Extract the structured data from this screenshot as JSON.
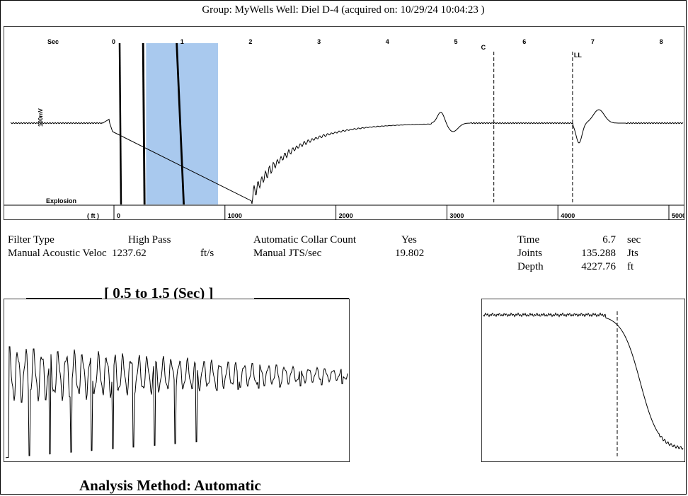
{
  "header": {
    "title": "Group: MyWells     Well: Diel D-4 (acquired on: 10/29/24 10:04:23 )"
  },
  "main_trace": {
    "sec_label": "Sec",
    "sec_ticks": [
      "0",
      "1",
      "2",
      "3",
      "4",
      "5",
      "6",
      "7",
      "8"
    ],
    "ft_label": "( ft )",
    "ft_ticks": [
      "0",
      "1000",
      "2000",
      "3000",
      "4000",
      "5000"
    ],
    "amplitude_label": "100mV",
    "explosion_label": "Explosion",
    "marker_c": "C",
    "marker_ll": "LL",
    "selection_sec": [
      0.5,
      1.5
    ],
    "marker_c_sec": 5.55,
    "marker_ll_sec": 6.7,
    "highlight_color": "#a9c9ee"
  },
  "params": {
    "filter_type_label": "Filter Type",
    "filter_type_value": "High Pass",
    "manual_velocity_label": "Manual Acoustic Veloc",
    "manual_velocity_value": "1237.62",
    "manual_velocity_unit": "ft/s",
    "auto_collar_label": "Automatic Collar Count",
    "auto_collar_value": "Yes",
    "manual_jts_label": "Manual JTS/sec",
    "manual_jts_value": "19.802",
    "time_label": "Time",
    "time_value": "6.7",
    "time_unit": "sec",
    "joints_label": "Joints",
    "joints_value": "135.288",
    "joints_unit": "Jts",
    "depth_label": "Depth",
    "depth_value": "4227.76",
    "depth_unit": "ft"
  },
  "zoom": {
    "title": "[ 0.5  to  1.5 (Sec) ]"
  },
  "footer": {
    "analysis_label": "Analysis Method:  Automatic"
  }
}
